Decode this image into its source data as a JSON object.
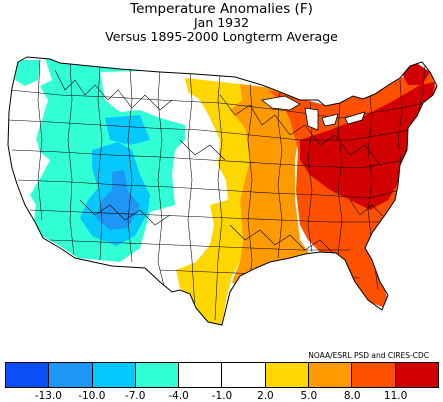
{
  "title": "Temperature Anomalies (F)",
  "subtitle": "Jan 1932",
  "subtitle2": "Versus 1895-2000 Longterm Average",
  "credit": "NOAA/ESRL PSD and CIRES-CDC",
  "legend": {
    "bins": [
      {
        "color": "#0a4ff5"
      },
      {
        "color": "#1e96f5"
      },
      {
        "color": "#05c8ff"
      },
      {
        "color": "#32ffd6"
      },
      {
        "color": "#ffffff"
      },
      {
        "color": "#ffffff"
      },
      {
        "color": "#ffd700"
      },
      {
        "color": "#ff9b00"
      },
      {
        "color": "#ff5000"
      },
      {
        "color": "#d20000"
      }
    ],
    "ticks": [
      "-13.0",
      "-10.0",
      "-7.0",
      "-4.0",
      "-1.0",
      "2.0",
      "5.0",
      "8.0",
      "11.0"
    ]
  },
  "map_regions": {
    "negative_west": "Cool anomaly (cyan) over interior West",
    "positive_east": "Warm anomaly (orange/red) over East"
  }
}
